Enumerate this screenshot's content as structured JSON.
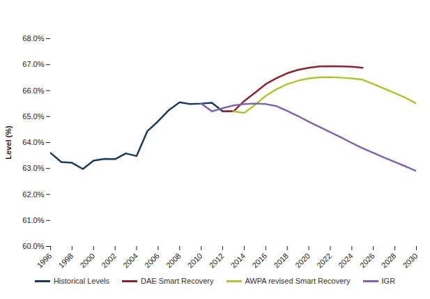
{
  "chart_data": {
    "type": "line",
    "y_label": "Level (%)",
    "x": [
      1996,
      1997,
      1998,
      1999,
      2000,
      2001,
      2002,
      2003,
      2004,
      2005,
      2006,
      2007,
      2008,
      2009,
      2010,
      2011,
      2012,
      2013,
      2014,
      2015,
      2016,
      2017,
      2018,
      2019,
      2020,
      2021,
      2022,
      2023,
      2024,
      2025,
      2026,
      2027,
      2028,
      2029,
      2030
    ],
    "xlim": [
      1996,
      2030
    ],
    "xticks": [
      1996,
      1998,
      2000,
      2002,
      2004,
      2006,
      2008,
      2010,
      2012,
      2014,
      2016,
      2018,
      2020,
      2022,
      2024,
      2026,
      2028,
      2030
    ],
    "ylim": [
      60,
      68
    ],
    "yticks": [
      {
        "value": 60,
        "label": "60.0%"
      },
      {
        "value": 61,
        "label": "61.0%"
      },
      {
        "value": 62,
        "label": "62.0%"
      },
      {
        "value": 63,
        "label": "63.0%"
      },
      {
        "value": 64,
        "label": "64.0%"
      },
      {
        "value": 65,
        "label": "65.0%"
      },
      {
        "value": 66,
        "label": "66.0%"
      },
      {
        "value": 67,
        "label": "67.0%"
      },
      {
        "value": 68,
        "label": "68.0%"
      }
    ],
    "grid": false,
    "legend": "bottom",
    "series": [
      {
        "name": "Historical Levels",
        "color": "#1c3a57",
        "values": [
          63.6,
          63.25,
          63.22,
          62.98,
          63.3,
          63.37,
          63.36,
          63.58,
          63.48,
          64.44,
          64.82,
          65.25,
          65.55,
          65.48,
          65.5,
          65.53,
          65.2,
          65.2,
          null,
          null,
          null,
          null,
          null,
          null,
          null,
          null,
          null,
          null,
          null,
          null,
          null,
          null,
          null,
          null,
          null
        ]
      },
      {
        "name": "DAE Smart Recovery",
        "color": "#8b2332",
        "values": [
          null,
          null,
          null,
          null,
          null,
          null,
          null,
          null,
          null,
          null,
          null,
          null,
          null,
          null,
          null,
          null,
          65.2,
          65.2,
          65.6,
          65.92,
          66.25,
          66.48,
          66.67,
          66.8,
          66.88,
          66.93,
          66.94,
          66.93,
          66.92,
          66.88,
          null,
          null,
          null,
          null,
          null
        ]
      },
      {
        "name": "AWPA revised Smart Recovery",
        "color": "#b2c236",
        "values": [
          null,
          null,
          null,
          null,
          null,
          null,
          null,
          null,
          null,
          null,
          null,
          null,
          null,
          null,
          null,
          null,
          null,
          65.2,
          65.14,
          65.45,
          65.8,
          66.05,
          66.25,
          66.38,
          66.47,
          66.51,
          66.52,
          66.5,
          66.47,
          66.42,
          66.25,
          66.08,
          65.9,
          65.72,
          65.5
        ]
      },
      {
        "name": "IGR",
        "color": "#8064a8",
        "values": [
          null,
          null,
          null,
          null,
          null,
          null,
          null,
          null,
          null,
          null,
          null,
          null,
          null,
          null,
          65.5,
          65.2,
          65.32,
          65.43,
          65.48,
          65.5,
          65.48,
          65.4,
          65.22,
          65.02,
          64.8,
          64.6,
          64.4,
          64.2,
          63.98,
          63.78,
          63.6,
          63.42,
          63.25,
          63.08,
          62.9
        ]
      }
    ]
  }
}
